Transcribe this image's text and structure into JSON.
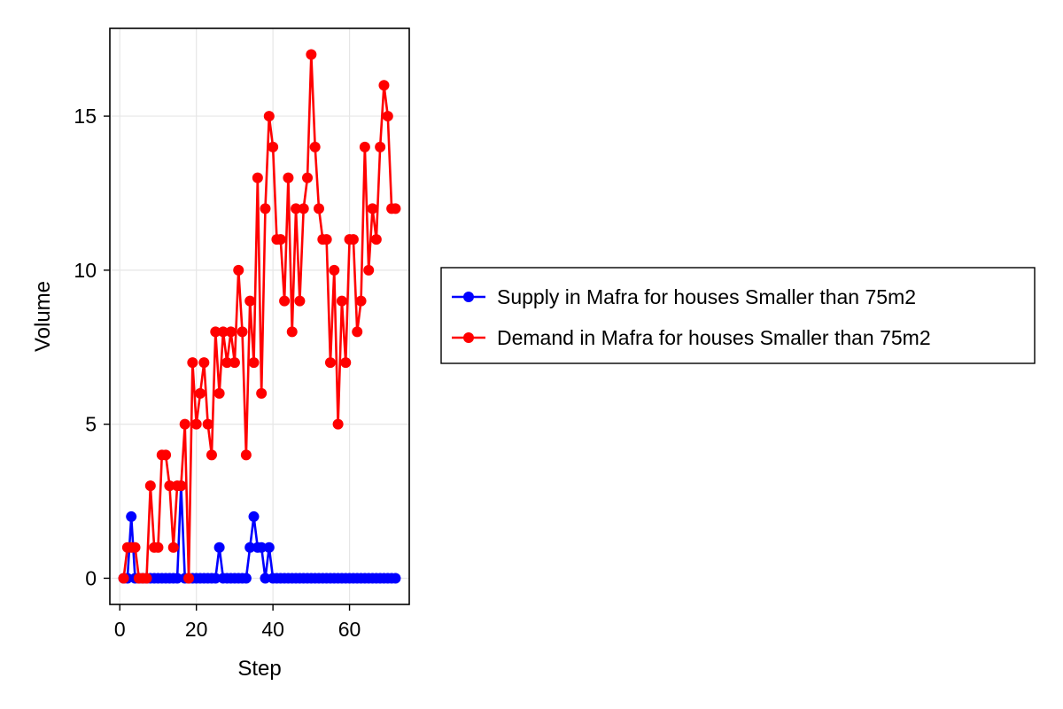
{
  "chart_data": {
    "type": "line",
    "title": "",
    "xlabel": "Step",
    "ylabel": "Volume",
    "xlim": [
      -2.6,
      75.6
    ],
    "ylim": [
      -0.85,
      17.85
    ],
    "xticks": [
      0,
      20,
      40,
      60
    ],
    "yticks": [
      0,
      5,
      10,
      15
    ],
    "x_tick_labels": [
      "0",
      "20",
      "40",
      "60"
    ],
    "y_tick_labels": [
      "0",
      "5",
      "10",
      "15"
    ],
    "grid": true,
    "legend_position": "right",
    "markers": true,
    "series": [
      {
        "name": "Supply in Mafra for houses Smaller than 75m2",
        "color": "#0000ff",
        "x": [
          1,
          2,
          3,
          4,
          5,
          6,
          7,
          8,
          9,
          10,
          11,
          12,
          13,
          14,
          15,
          16,
          17,
          18,
          19,
          20,
          21,
          22,
          23,
          24,
          25,
          26,
          27,
          28,
          29,
          30,
          31,
          32,
          33,
          34,
          35,
          36,
          37,
          38,
          39,
          40,
          41,
          42,
          43,
          44,
          45,
          46,
          47,
          48,
          49,
          50,
          51,
          52,
          53,
          54,
          55,
          56,
          57,
          58,
          59,
          60,
          61,
          62,
          63,
          64,
          65,
          66,
          67,
          68,
          69,
          70,
          71,
          72
        ],
        "y": [
          0,
          0,
          2,
          0,
          0,
          0,
          0,
          0,
          0,
          0,
          0,
          0,
          0,
          0,
          0,
          3,
          0,
          0,
          0,
          0,
          0,
          0,
          0,
          0,
          0,
          1,
          0,
          0,
          0,
          0,
          0,
          0,
          0,
          1,
          2,
          1,
          1,
          0,
          1,
          0,
          0,
          0,
          0,
          0,
          0,
          0,
          0,
          0,
          0,
          0,
          0,
          0,
          0,
          0,
          0,
          0,
          0,
          0,
          0,
          0,
          0,
          0,
          0,
          0,
          0,
          0,
          0,
          0,
          0,
          0,
          0,
          0
        ]
      },
      {
        "name": "Demand in Mafra for houses Smaller than 75m2",
        "color": "#ff0000",
        "x": [
          1,
          2,
          3,
          4,
          5,
          6,
          7,
          8,
          9,
          10,
          11,
          12,
          13,
          14,
          15,
          16,
          17,
          18,
          19,
          20,
          21,
          22,
          23,
          24,
          25,
          26,
          27,
          28,
          29,
          30,
          31,
          32,
          33,
          34,
          35,
          36,
          37,
          38,
          39,
          40,
          41,
          42,
          43,
          44,
          45,
          46,
          47,
          48,
          49,
          50,
          51,
          52,
          53,
          54,
          55,
          56,
          57,
          58,
          59,
          60,
          61,
          62,
          63,
          64,
          65,
          66,
          67,
          68,
          69,
          70,
          71,
          72
        ],
        "y": [
          0,
          1,
          1,
          1,
          0,
          0,
          0,
          3,
          1,
          1,
          4,
          4,
          3,
          1,
          3,
          3,
          5,
          0,
          7,
          5,
          6,
          7,
          5,
          4,
          8,
          6,
          8,
          7,
          8,
          7,
          10,
          8,
          4,
          9,
          7,
          13,
          6,
          12,
          15,
          14,
          11,
          11,
          9,
          13,
          8,
          12,
          9,
          12,
          13,
          17,
          14,
          12,
          11,
          11,
          7,
          10,
          5,
          9,
          7,
          11,
          11,
          8,
          9,
          14,
          10,
          12,
          11,
          14,
          16,
          15,
          12,
          12
        ]
      }
    ]
  }
}
